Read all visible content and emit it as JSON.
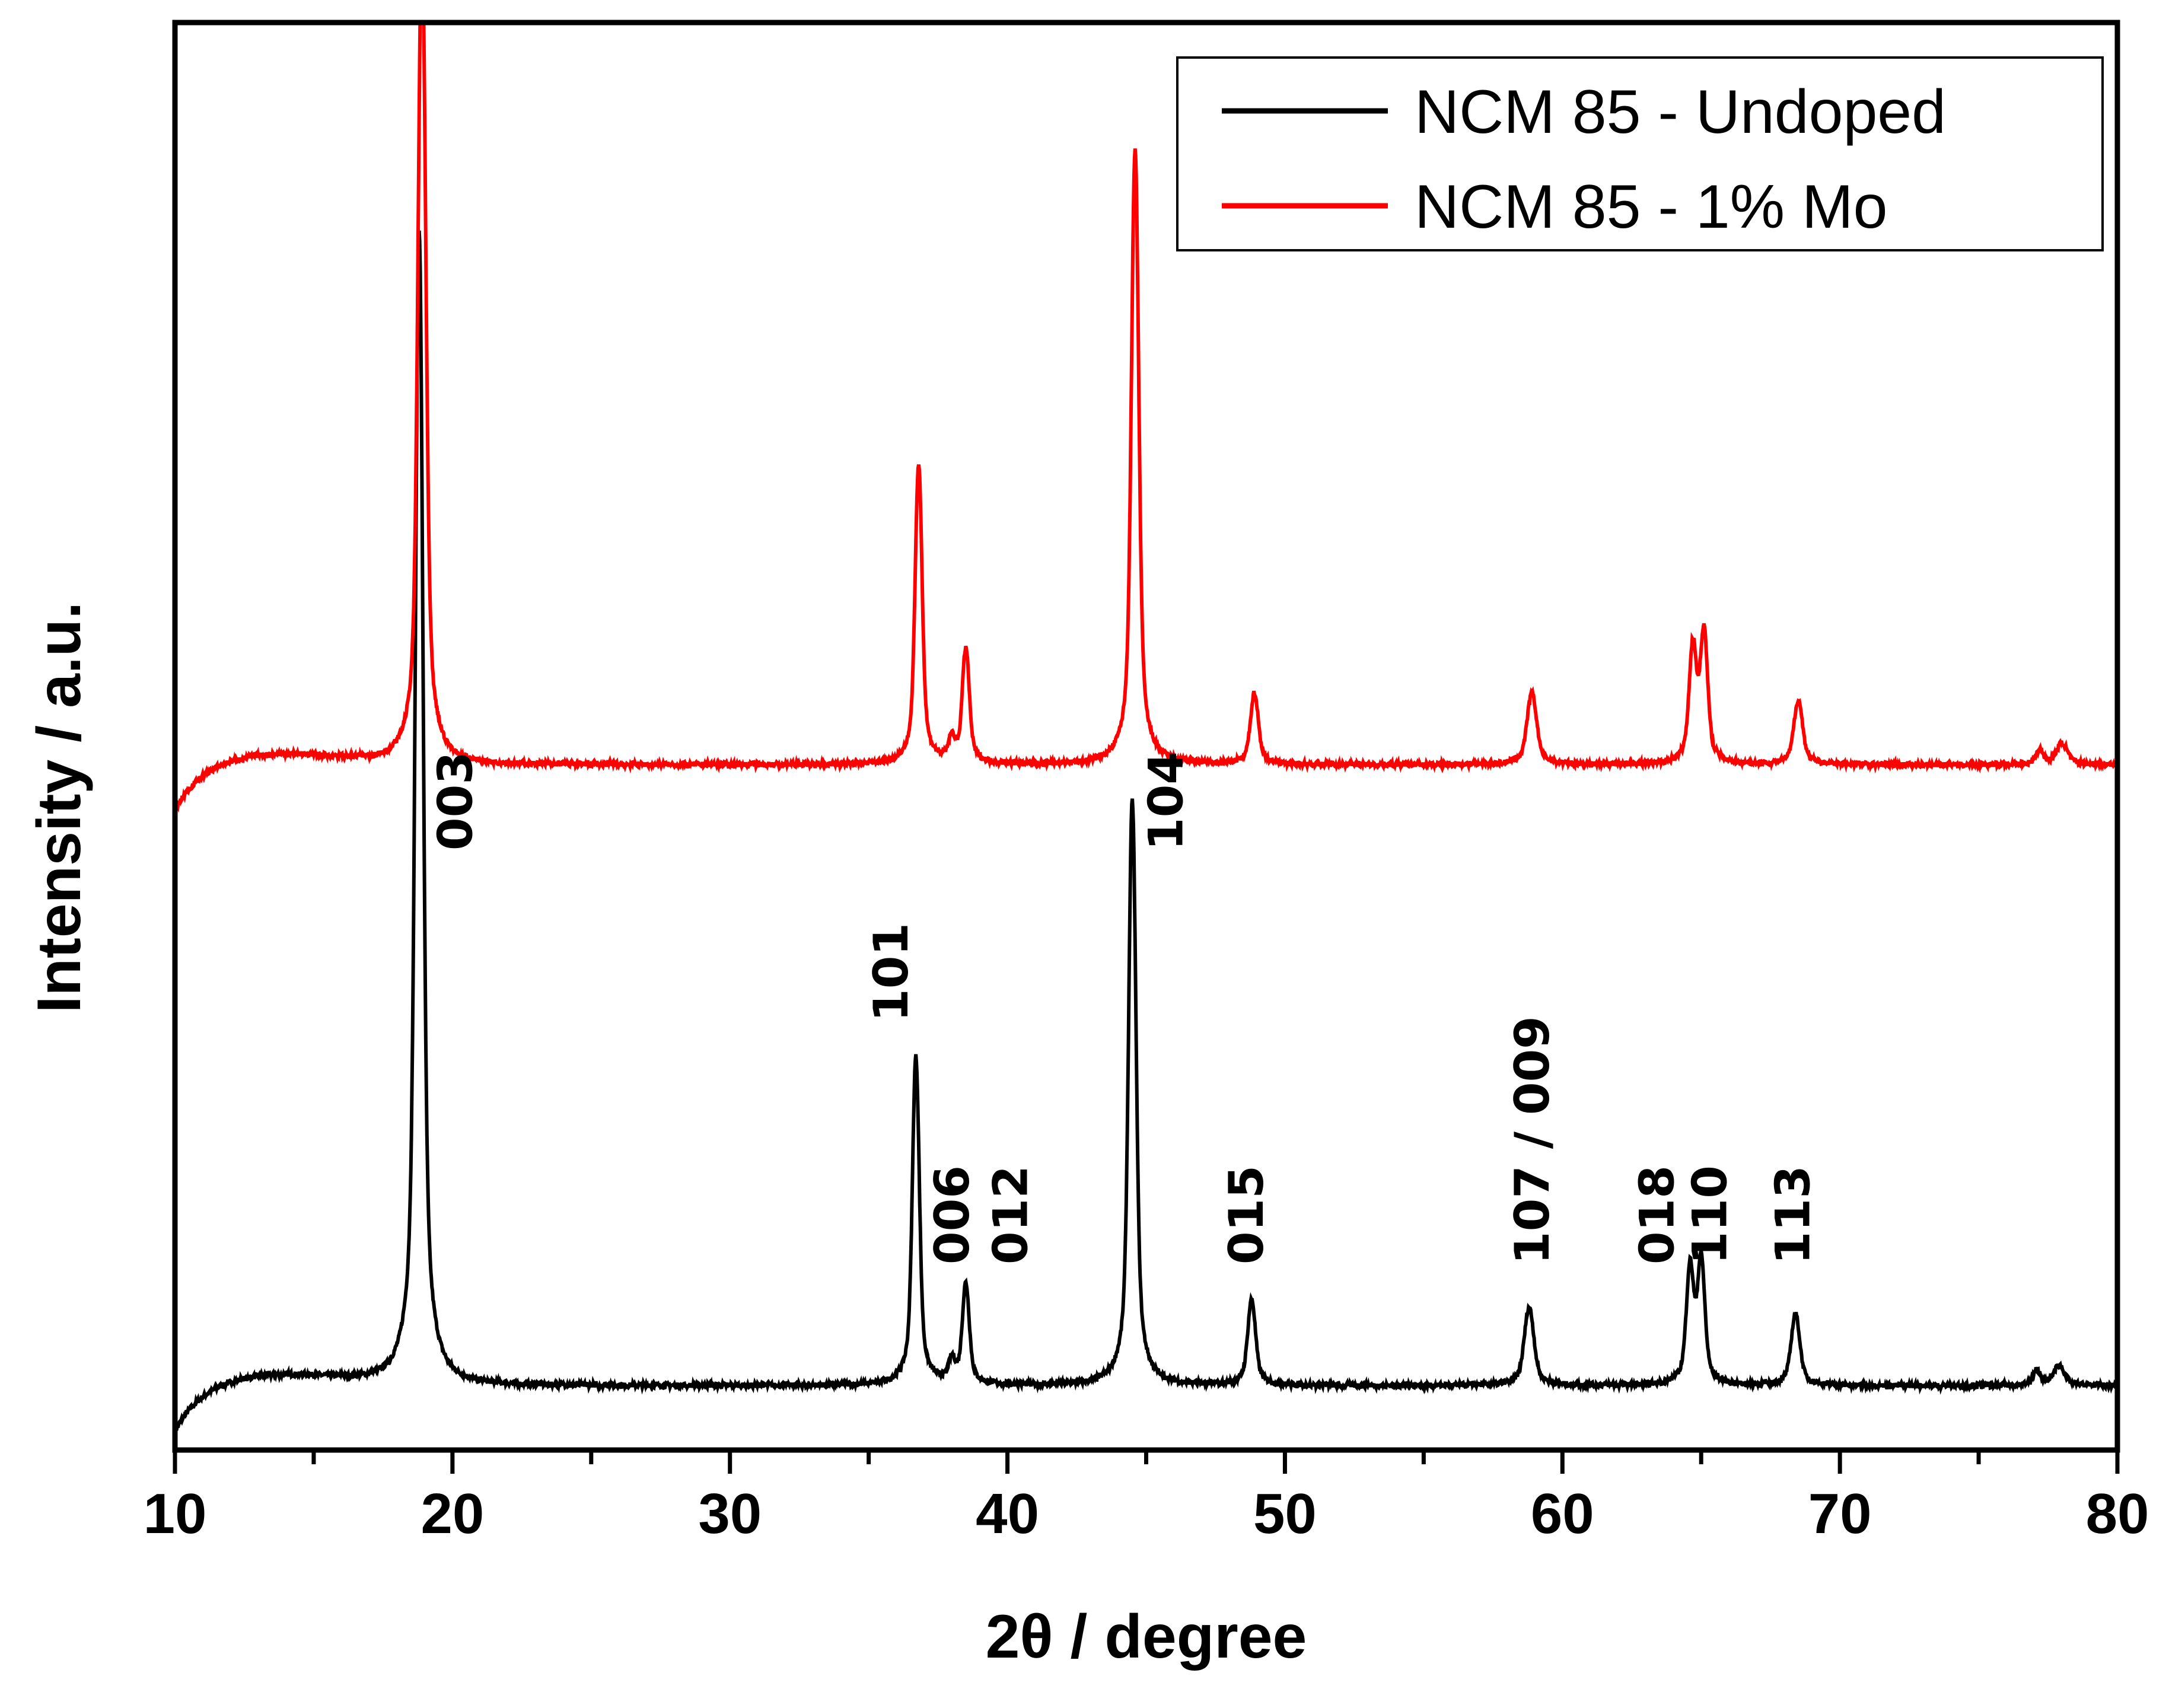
{
  "chart_data": {
    "type": "line",
    "xlabel": "2θ / degree",
    "ylabel": "Intensity / a.u.",
    "xlim": [
      10,
      80
    ],
    "ylim": [
      0,
      100
    ],
    "xticks": [
      10,
      20,
      30,
      40,
      50,
      60,
      70,
      80
    ],
    "legend_position": "top-right",
    "series": [
      {
        "name": "NCM 85 - Undoped",
        "color": "#000000",
        "baseline": 4.5,
        "peaks": [
          {
            "x": 18.8,
            "height": 81,
            "width": 0.18
          },
          {
            "x": 36.7,
            "height": 23,
            "width": 0.16
          },
          {
            "x": 38.0,
            "height": 1.5,
            "width": 0.15
          },
          {
            "x": 38.5,
            "height": 7,
            "width": 0.16
          },
          {
            "x": 44.5,
            "height": 41,
            "width": 0.17
          },
          {
            "x": 48.8,
            "height": 6,
            "width": 0.18
          },
          {
            "x": 58.8,
            "height": 5.5,
            "width": 0.22
          },
          {
            "x": 64.6,
            "height": 8,
            "width": 0.17
          },
          {
            "x": 65.0,
            "height": 8.5,
            "width": 0.17
          },
          {
            "x": 68.4,
            "height": 5,
            "width": 0.2
          },
          {
            "x": 77.1,
            "height": 1,
            "width": 0.18
          },
          {
            "x": 77.9,
            "height": 1.4,
            "width": 0.25
          }
        ]
      },
      {
        "name": "NCM 85 - 1% Mo",
        "color": "#ff0000",
        "baseline": 48,
        "peaks": [
          {
            "x": 18.9,
            "height": 58,
            "width": 0.18
          },
          {
            "x": 36.8,
            "height": 21,
            "width": 0.16
          },
          {
            "x": 38.0,
            "height": 1.5,
            "width": 0.15
          },
          {
            "x": 38.5,
            "height": 8,
            "width": 0.16
          },
          {
            "x": 44.6,
            "height": 43,
            "width": 0.17
          },
          {
            "x": 48.9,
            "height": 5,
            "width": 0.18
          },
          {
            "x": 58.9,
            "height": 5,
            "width": 0.22
          },
          {
            "x": 64.7,
            "height": 8,
            "width": 0.17
          },
          {
            "x": 65.1,
            "height": 9,
            "width": 0.17
          },
          {
            "x": 68.5,
            "height": 4.5,
            "width": 0.2
          },
          {
            "x": 77.2,
            "height": 1,
            "width": 0.18
          },
          {
            "x": 78.0,
            "height": 1.5,
            "width": 0.25
          }
        ]
      }
    ],
    "annotations": [
      {
        "text": "003",
        "x": 20.7,
        "y": 42
      },
      {
        "text": "104",
        "x": 46.3,
        "y": 42
      },
      {
        "text": "101",
        "x": 36.4,
        "y": 30
      },
      {
        "text": "006",
        "x": 38.6,
        "y": 13
      },
      {
        "text": "012",
        "x": 40.7,
        "y": 13
      },
      {
        "text": "015",
        "x": 49.2,
        "y": 13
      },
      {
        "text": "107 / 009",
        "x": 59.5,
        "y": 13
      },
      {
        "text": "018",
        "x": 64.0,
        "y": 13
      },
      {
        "text": "110",
        "x": 65.9,
        "y": 13
      },
      {
        "text": "113",
        "x": 68.9,
        "y": 13
      }
    ]
  }
}
